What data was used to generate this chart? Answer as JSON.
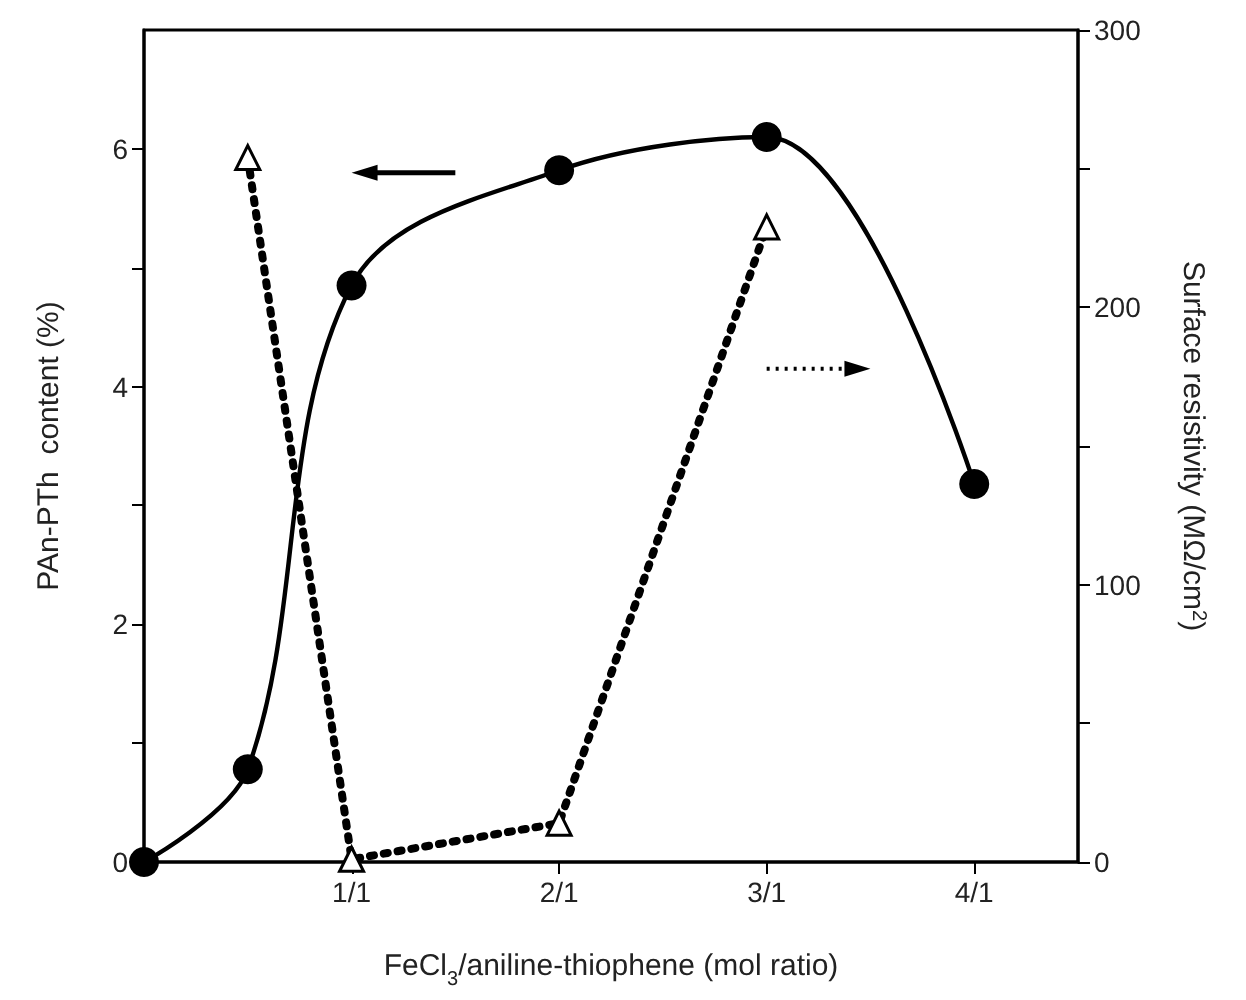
{
  "chart_data": {
    "type": "line",
    "xlabel": "FeCl$_{3}$/aniline-thiophene (mol ratio)",
    "ylabel": "PAn-PTh  content (%)",
    "y2label": "Surface resistivity (MΩ/cm$^{2}$)",
    "categories": [
      null,
      null,
      "1/1",
      null,
      "2/1",
      null,
      "3/1",
      null,
      "4/1",
      null
    ],
    "ylim": [
      0,
      7
    ],
    "yticks": [
      0,
      {
        "value": 1,
        "label": null
      },
      2,
      {
        "value": 3,
        "label": null
      },
      4,
      {
        "value": 5,
        "label": null
      },
      6
    ],
    "y2lim": [
      0,
      300
    ],
    "y2ticks": [
      0,
      {
        "value": 50,
        "label": null
      },
      100,
      {
        "value": 150,
        "label": null
      },
      200,
      {
        "value": 250,
        "label": null
      },
      300
    ],
    "grid": false,
    "series": [
      {
        "color": "#000000",
        "marker": "circle",
        "line_style": "solid",
        "values": [
          0,
          0.78,
          4.85,
          null,
          5.82,
          null,
          6.1,
          null,
          3.18,
          null
        ]
      },
      {
        "color": "#000000",
        "marker": "triangle",
        "line_style": "dotted",
        "axis": "y2",
        "values": [
          null,
          254,
          1,
          null,
          14,
          null,
          229,
          null,
          null,
          null
        ]
      }
    ]
  }
}
